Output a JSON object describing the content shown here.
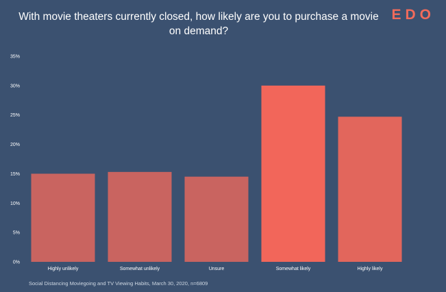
{
  "header": {
    "title": "With movie theaters currently closed, how likely are you to purchase a movie on demand?",
    "logo": "EDO"
  },
  "footer": {
    "source": "Social Distancing Moviegoing and TV Viewing Habits, March 30, 2020, n=6809"
  },
  "colors": {
    "background": "#3b5170",
    "bar_default": "#c96460",
    "bar_somewhat_likely": "#f2665a",
    "bar_highly_likely": "#e2665c",
    "logo": "#f26b5b"
  },
  "chart_data": {
    "type": "bar",
    "title": "With movie theaters currently closed, how likely are you to purchase a movie on demand?",
    "categories": [
      "Highly unlikely",
      "Somewhat unlikely",
      "Unsure",
      "Somewhat likely",
      "Highly likely"
    ],
    "values": [
      15.0,
      15.3,
      14.5,
      30.0,
      24.7
    ],
    "yticks": [
      "0%",
      "5%",
      "10%",
      "15%",
      "20%",
      "25%",
      "30%",
      "35%"
    ],
    "ylim": [
      0,
      35
    ],
    "grid": false,
    "legend": "none"
  }
}
